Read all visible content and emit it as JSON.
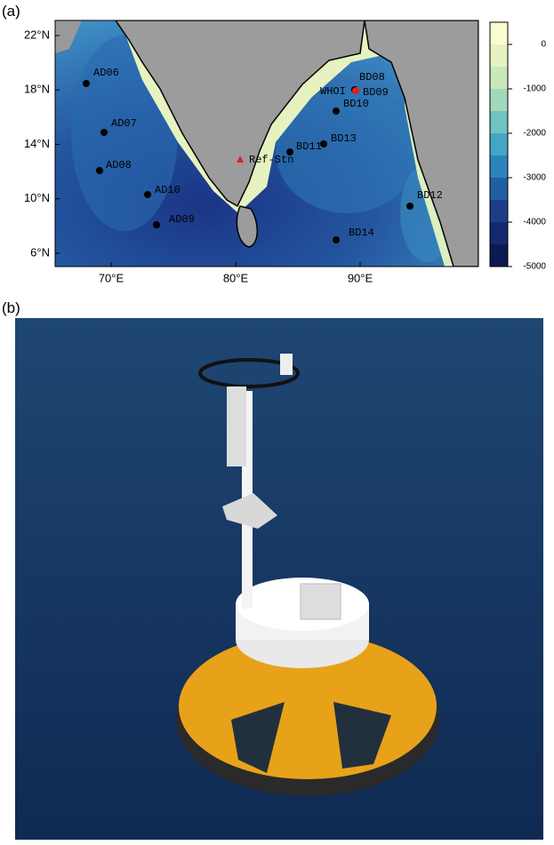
{
  "panels": {
    "a": "(a)",
    "b": "(b)"
  },
  "map": {
    "lat_ticks": [
      {
        "value": 22,
        "label": "22°N"
      },
      {
        "value": 18,
        "label": "18°N"
      },
      {
        "value": 14,
        "label": "14°N"
      },
      {
        "value": 10,
        "label": "10°N"
      },
      {
        "value": 6,
        "label": "6°N"
      }
    ],
    "lon_ticks": [
      {
        "value": 70,
        "label": "70°E"
      },
      {
        "value": 80,
        "label": "80°E"
      },
      {
        "value": 90,
        "label": "90°E"
      }
    ],
    "stations": [
      {
        "label": "AD06"
      },
      {
        "label": "AD07"
      },
      {
        "label": "AD08"
      },
      {
        "label": "AD10"
      },
      {
        "label": "AD09"
      },
      {
        "label": "BD08"
      },
      {
        "label": "WHOI"
      },
      {
        "label": "BD09"
      },
      {
        "label": "BD10"
      },
      {
        "label": "BD11"
      },
      {
        "label": "BD13"
      },
      {
        "label": "BD12"
      },
      {
        "label": "BD14"
      },
      {
        "label": "Ref-Stn"
      }
    ],
    "colorbar_ticks": [
      0,
      -1000,
      -2000,
      -3000,
      -4000,
      -5000
    ]
  }
}
